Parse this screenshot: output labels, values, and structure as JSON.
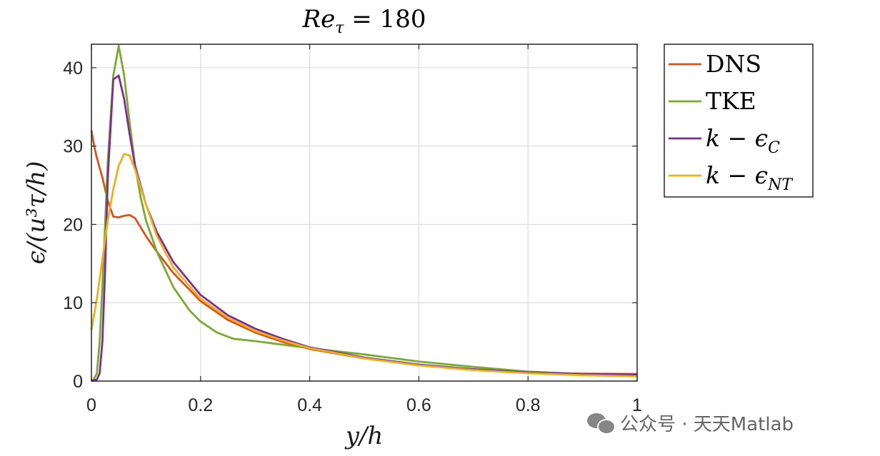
{
  "chart_data": {
    "type": "line",
    "title": "Reτ = 180",
    "title_base": "Re",
    "title_sub": "τ",
    "title_rest": " = 180",
    "xlabel": "y/h",
    "ylabel": "ϵ/(u³τ/h)",
    "xlim": [
      0,
      1
    ],
    "ylim": [
      0,
      43
    ],
    "xticks": [
      "0",
      "0.2",
      "0.4",
      "0.6",
      "0.8",
      "1"
    ],
    "yticks": [
      "0",
      "10",
      "20",
      "30",
      "40"
    ],
    "grid": true,
    "legend_position": "outside-top-right",
    "series": [
      {
        "name": "DNS",
        "legend_base": "DNS",
        "legend_sub": "",
        "color": "#D95319",
        "x": [
          0,
          0.005,
          0.01,
          0.02,
          0.03,
          0.04,
          0.05,
          0.06,
          0.07,
          0.08,
          0.1,
          0.12,
          0.15,
          0.2,
          0.25,
          0.3,
          0.35,
          0.4,
          0.5,
          0.6,
          0.7,
          0.8,
          0.9,
          1.0
        ],
        "y": [
          32,
          30,
          28.5,
          26,
          23,
          21,
          20.9,
          21.1,
          21.2,
          20.8,
          18.5,
          16.5,
          13.8,
          10.2,
          7.8,
          6.2,
          5.0,
          4.1,
          2.9,
          2.0,
          1.5,
          1.1,
          0.95,
          0.9
        ]
      },
      {
        "name": "TKE",
        "legend_base": "TKE",
        "legend_sub": "",
        "color": "#77AC30",
        "x": [
          0,
          0.005,
          0.01,
          0.015,
          0.02,
          0.03,
          0.04,
          0.05,
          0.06,
          0.07,
          0.08,
          0.09,
          0.1,
          0.12,
          0.15,
          0.18,
          0.2,
          0.23,
          0.26,
          0.3,
          0.4,
          0.5,
          0.6,
          0.7,
          0.8,
          0.9,
          1.0
        ],
        "y": [
          0,
          0.3,
          1.0,
          5.0,
          12.0,
          28.0,
          39.0,
          42.8,
          39.0,
          33.0,
          27.5,
          23.5,
          20.5,
          16.5,
          12.0,
          9.0,
          7.6,
          6.2,
          5.4,
          5.1,
          4.2,
          3.4,
          2.5,
          1.8,
          1.2,
          0.9,
          0.8
        ]
      },
      {
        "name": "k − ϵC",
        "legend_base": "k − ϵ",
        "legend_sub": "C",
        "color": "#7E2F8E",
        "x": [
          0,
          0.01,
          0.015,
          0.02,
          0.025,
          0.03,
          0.04,
          0.05,
          0.06,
          0.07,
          0.08,
          0.1,
          0.12,
          0.15,
          0.2,
          0.25,
          0.3,
          0.35,
          0.4,
          0.5,
          0.6,
          0.7,
          0.8,
          0.9,
          1.0
        ],
        "y": [
          0,
          0.2,
          1.0,
          5.0,
          14.0,
          26.0,
          38.5,
          39.0,
          36.0,
          31.5,
          27.5,
          22.5,
          19.0,
          15.2,
          11.0,
          8.4,
          6.7,
          5.4,
          4.3,
          3.0,
          2.1,
          1.5,
          1.1,
          0.9,
          0.8
        ]
      },
      {
        "name": "k − ϵNT",
        "legend_base": "k − ϵ",
        "legend_sub": "NT",
        "color": "#EDB120",
        "x": [
          0,
          0.01,
          0.02,
          0.03,
          0.04,
          0.05,
          0.06,
          0.07,
          0.08,
          0.1,
          0.12,
          0.15,
          0.2,
          0.25,
          0.3,
          0.35,
          0.4,
          0.5,
          0.6,
          0.7,
          0.8,
          0.9,
          1.0
        ],
        "y": [
          6.5,
          10.5,
          15.5,
          20.5,
          24.5,
          27.5,
          29.0,
          28.8,
          27.0,
          22.5,
          18.5,
          14.5,
          10.5,
          8.1,
          6.4,
          5.2,
          4.2,
          2.9,
          2.0,
          1.4,
          1.0,
          0.75,
          0.6
        ]
      }
    ]
  },
  "watermark": {
    "text": "公众号 · 天天Matlab"
  }
}
